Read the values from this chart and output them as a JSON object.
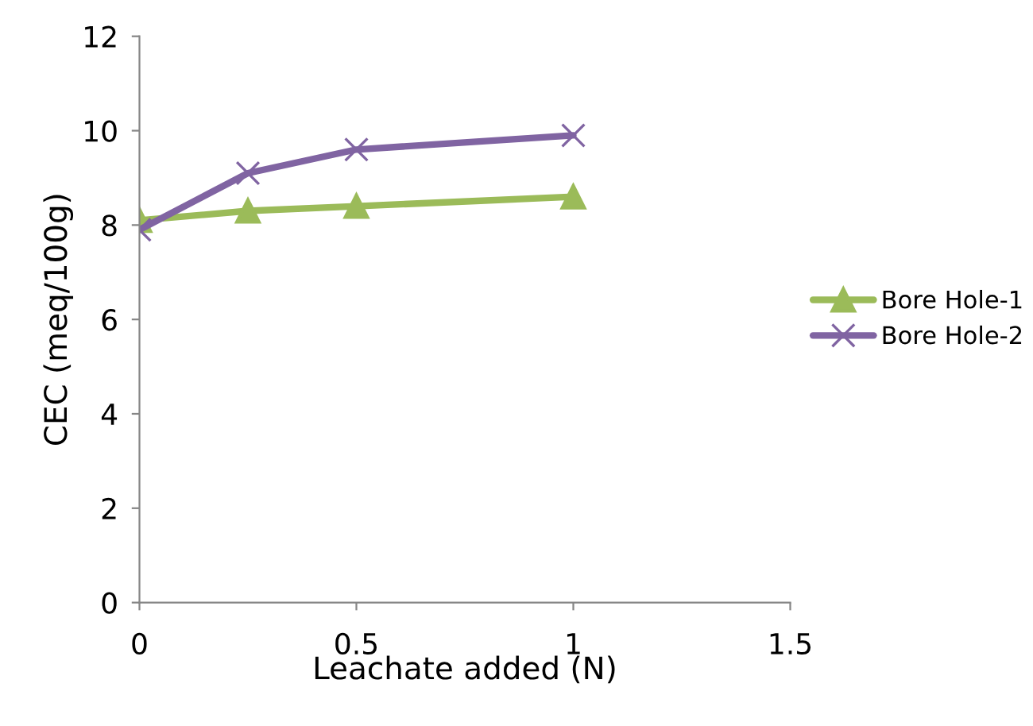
{
  "chart_data": {
    "type": "line",
    "xlabel": "Leachate added (N)",
    "ylabel": "CEC (meq/100g)",
    "x": [
      0,
      0.25,
      0.5,
      1
    ],
    "series": [
      {
        "name": "Bore Hole-1",
        "color": "#9bbb59",
        "values": [
          8.1,
          8.3,
          8.4,
          8.6
        ],
        "marker": "triangle"
      },
      {
        "name": "Bore Hole-2",
        "color": "#8064a2",
        "values": [
          7.9,
          9.1,
          9.6,
          9.9
        ],
        "marker": "cross"
      }
    ],
    "xlim": [
      0,
      1.5
    ],
    "xticks": [
      0,
      0.5,
      1,
      1.5
    ],
    "ylim": [
      0,
      12
    ],
    "yticks": [
      0,
      2,
      4,
      6,
      8,
      10,
      12
    ],
    "grid": false,
    "legend": "right",
    "line_style": "solid"
  }
}
